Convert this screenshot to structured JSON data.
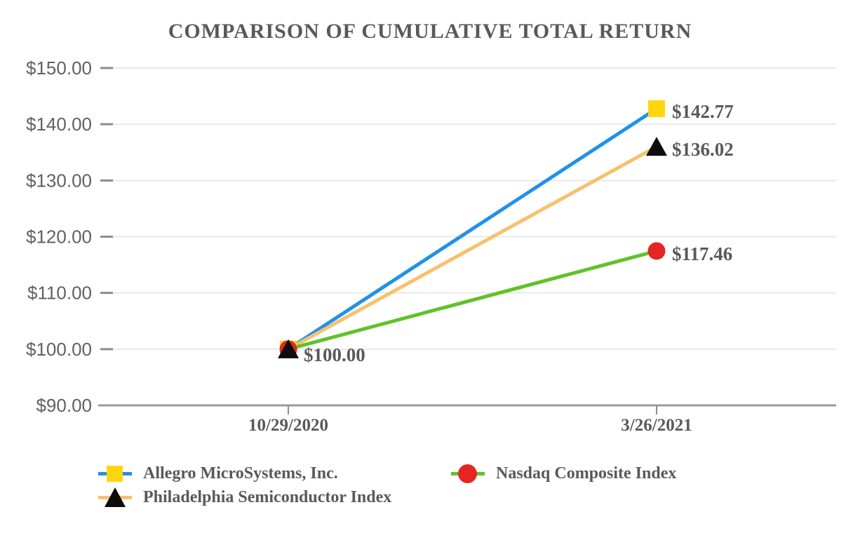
{
  "chart_data": {
    "type": "line",
    "title": "COMPARISON OF CUMULATIVE TOTAL RETURN",
    "categories": [
      "10/29/2020",
      "3/26/2021"
    ],
    "series": [
      {
        "name": "Allegro MicroSystems, Inc.",
        "values": [
          100.0,
          142.77
        ],
        "line_color": "#2191ea",
        "marker": "square",
        "marker_color": "#ffd60e",
        "end_label": "$142.77"
      },
      {
        "name": "Philadelphia Semiconductor Index",
        "values": [
          100.0,
          136.02
        ],
        "line_color": "#f6c16d",
        "marker": "triangle",
        "marker_color": "#0d0d0d",
        "end_label": "$136.02"
      },
      {
        "name": "Nasdaq Composite Index",
        "values": [
          100.0,
          117.46
        ],
        "line_color": "#60c228",
        "marker": "circle",
        "marker_color": "#e32621",
        "end_label": "$117.46"
      }
    ],
    "start_label": "$100.00",
    "y_axis": {
      "min": 90,
      "max": 150,
      "step": 10,
      "tick_labels": [
        "$150.00",
        "$140.00",
        "$130.00",
        "$120.00",
        "$110.00",
        "$100.00",
        "$90.00"
      ]
    },
    "x_axis": {
      "tick_labels": [
        "10/29/2020",
        "3/26/2021"
      ]
    },
    "grid": true,
    "legend_position": "bottom-left",
    "legend_order": [
      0,
      2,
      1
    ],
    "colors": {
      "grid": "#e9e9e9",
      "axis": "#9a9a9a",
      "tick": "#8c8c8c",
      "label_text": "#595959",
      "y_label_text": "#616161"
    }
  }
}
